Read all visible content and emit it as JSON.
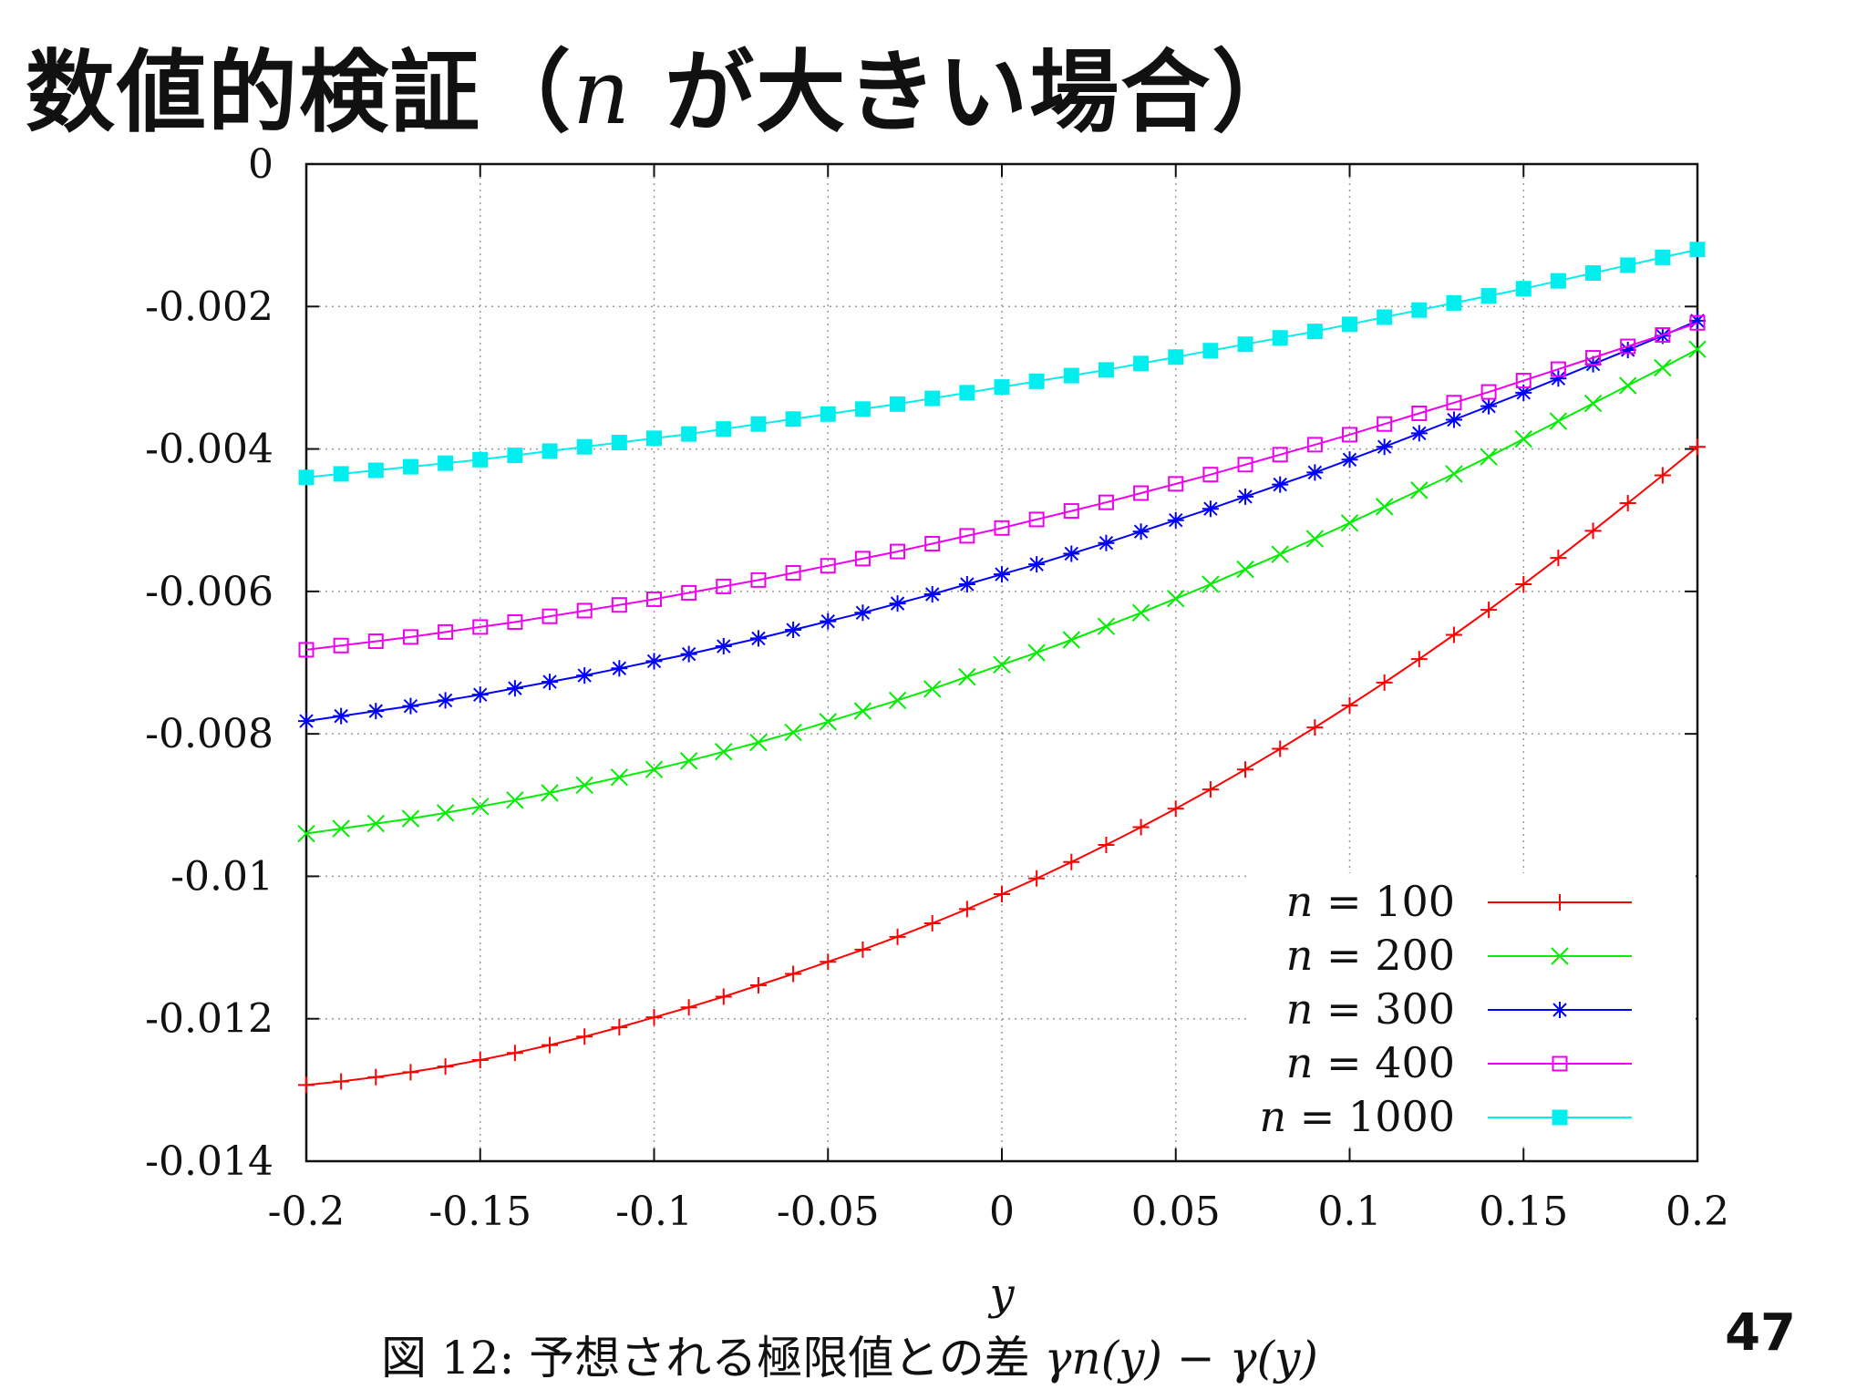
{
  "slide": {
    "title_prefix": "数値的検証（",
    "title_var": "n",
    "title_suffix": " が大きい場合）",
    "caption_prefix": "図 12: 予想される極限値との差 ",
    "caption_math": "γn(y) − γ(y)",
    "page_number": "47"
  },
  "chart_data": {
    "type": "line",
    "title": "",
    "xlabel": "y",
    "ylabel": "",
    "xlim": [
      -0.2,
      0.2
    ],
    "ylim": [
      -0.014,
      0
    ],
    "grid": true,
    "legend_position": "bottom-right",
    "x_ticks": [
      -0.2,
      -0.15,
      -0.1,
      -0.05,
      0,
      0.05,
      0.1,
      0.15,
      0.2
    ],
    "x_tick_labels": [
      "-0.2",
      "-0.15",
      "-0.1",
      "-0.05",
      "0",
      "0.05",
      "0.1",
      "0.15",
      "0.2"
    ],
    "y_ticks": [
      0,
      -0.002,
      -0.004,
      -0.006,
      -0.008,
      -0.01,
      -0.012,
      -0.014
    ],
    "y_tick_labels": [
      "0",
      "-0.002",
      "-0.004",
      "-0.006",
      "-0.008",
      "-0.01",
      "-0.012",
      "-0.014"
    ],
    "x": [
      -0.2,
      -0.19,
      -0.18,
      -0.17,
      -0.16,
      -0.15,
      -0.14,
      -0.13,
      -0.12,
      -0.11,
      -0.1,
      -0.09,
      -0.08,
      -0.07,
      -0.06,
      -0.05,
      -0.04,
      -0.03,
      -0.02,
      -0.01,
      0,
      0.01,
      0.02,
      0.03,
      0.04,
      0.05,
      0.06,
      0.07,
      0.08,
      0.09,
      0.1,
      0.11,
      0.12,
      0.13,
      0.14,
      0.15,
      0.16,
      0.17,
      0.18,
      0.19,
      0.2
    ],
    "series": [
      {
        "name": "n = 100",
        "legend_var": "n",
        "legend_value": "= 100",
        "color": "#ff0000",
        "marker": "plus",
        "values": [
          -0.01293,
          -0.01288,
          -0.01282,
          -0.01275,
          -0.01267,
          -0.01258,
          -0.01248,
          -0.01237,
          -0.01225,
          -0.01212,
          -0.01198,
          -0.01184,
          -0.01169,
          -0.01153,
          -0.01137,
          -0.0112,
          -0.01103,
          -0.01085,
          -0.01066,
          -0.01046,
          -0.01025,
          -0.01003,
          -0.0098,
          -0.00956,
          -0.00931,
          -0.00905,
          -0.00878,
          -0.0085,
          -0.00821,
          -0.00791,
          -0.0076,
          -0.00728,
          -0.00695,
          -0.00661,
          -0.00626,
          -0.0059,
          -0.00553,
          -0.00515,
          -0.00476,
          -0.00437,
          -0.00397
        ]
      },
      {
        "name": "n = 200",
        "legend_var": "n",
        "legend_value": "= 200",
        "color": "#00ee00",
        "marker": "cross",
        "values": [
          -0.0094,
          -0.00933,
          -0.00926,
          -0.00919,
          -0.00911,
          -0.00902,
          -0.00893,
          -0.00883,
          -0.00872,
          -0.00861,
          -0.0085,
          -0.00838,
          -0.00825,
          -0.00812,
          -0.00798,
          -0.00783,
          -0.00768,
          -0.00753,
          -0.00737,
          -0.0072,
          -0.00703,
          -0.00686,
          -0.00668,
          -0.00649,
          -0.0063,
          -0.0061,
          -0.0059,
          -0.00569,
          -0.00548,
          -0.00526,
          -0.00504,
          -0.00481,
          -0.00458,
          -0.00435,
          -0.00411,
          -0.00386,
          -0.00361,
          -0.00336,
          -0.00311,
          -0.00286,
          -0.0026
        ]
      },
      {
        "name": "n = 300",
        "legend_var": "n",
        "legend_value": "= 300",
        "color": "#0000ff",
        "marker": "star",
        "values": [
          -0.00782,
          -0.00775,
          -0.00768,
          -0.00761,
          -0.00753,
          -0.00745,
          -0.00736,
          -0.00727,
          -0.00718,
          -0.00708,
          -0.00698,
          -0.00688,
          -0.00677,
          -0.00666,
          -0.00654,
          -0.00642,
          -0.0063,
          -0.00617,
          -0.00604,
          -0.0059,
          -0.00576,
          -0.00562,
          -0.00547,
          -0.00532,
          -0.00516,
          -0.005,
          -0.00484,
          -0.00467,
          -0.0045,
          -0.00433,
          -0.00415,
          -0.00397,
          -0.00378,
          -0.00359,
          -0.0034,
          -0.00321,
          -0.00301,
          -0.00281,
          -0.00261,
          -0.00241,
          -0.0022
        ]
      },
      {
        "name": "n = 400",
        "legend_var": "n",
        "legend_value": "= 400",
        "color": "#ee00ee",
        "marker": "square-open",
        "values": [
          -0.00682,
          -0.00676,
          -0.0067,
          -0.00664,
          -0.00657,
          -0.0065,
          -0.00643,
          -0.00635,
          -0.00627,
          -0.00619,
          -0.00611,
          -0.00602,
          -0.00593,
          -0.00584,
          -0.00574,
          -0.00564,
          -0.00554,
          -0.00544,
          -0.00533,
          -0.00522,
          -0.00511,
          -0.00499,
          -0.00487,
          -0.00475,
          -0.00462,
          -0.00449,
          -0.00436,
          -0.00422,
          -0.00408,
          -0.00394,
          -0.0038,
          -0.00365,
          -0.0035,
          -0.00335,
          -0.0032,
          -0.00304,
          -0.00288,
          -0.00272,
          -0.00256,
          -0.0024,
          -0.00223
        ]
      },
      {
        "name": "n = 1000",
        "legend_var": "n",
        "legend_value": "= 1000",
        "color": "#00eeee",
        "marker": "square-filled",
        "values": [
          -0.0044,
          -0.00435,
          -0.0043,
          -0.00425,
          -0.0042,
          -0.00415,
          -0.00409,
          -0.00403,
          -0.00397,
          -0.00391,
          -0.00385,
          -0.00379,
          -0.00372,
          -0.00365,
          -0.00358,
          -0.00351,
          -0.00344,
          -0.00337,
          -0.00329,
          -0.00321,
          -0.00313,
          -0.00305,
          -0.00297,
          -0.00289,
          -0.0028,
          -0.00271,
          -0.00262,
          -0.00253,
          -0.00244,
          -0.00235,
          -0.00225,
          -0.00215,
          -0.00205,
          -0.00195,
          -0.00185,
          -0.00175,
          -0.00164,
          -0.00153,
          -0.00142,
          -0.00131,
          -0.0012
        ]
      }
    ]
  }
}
